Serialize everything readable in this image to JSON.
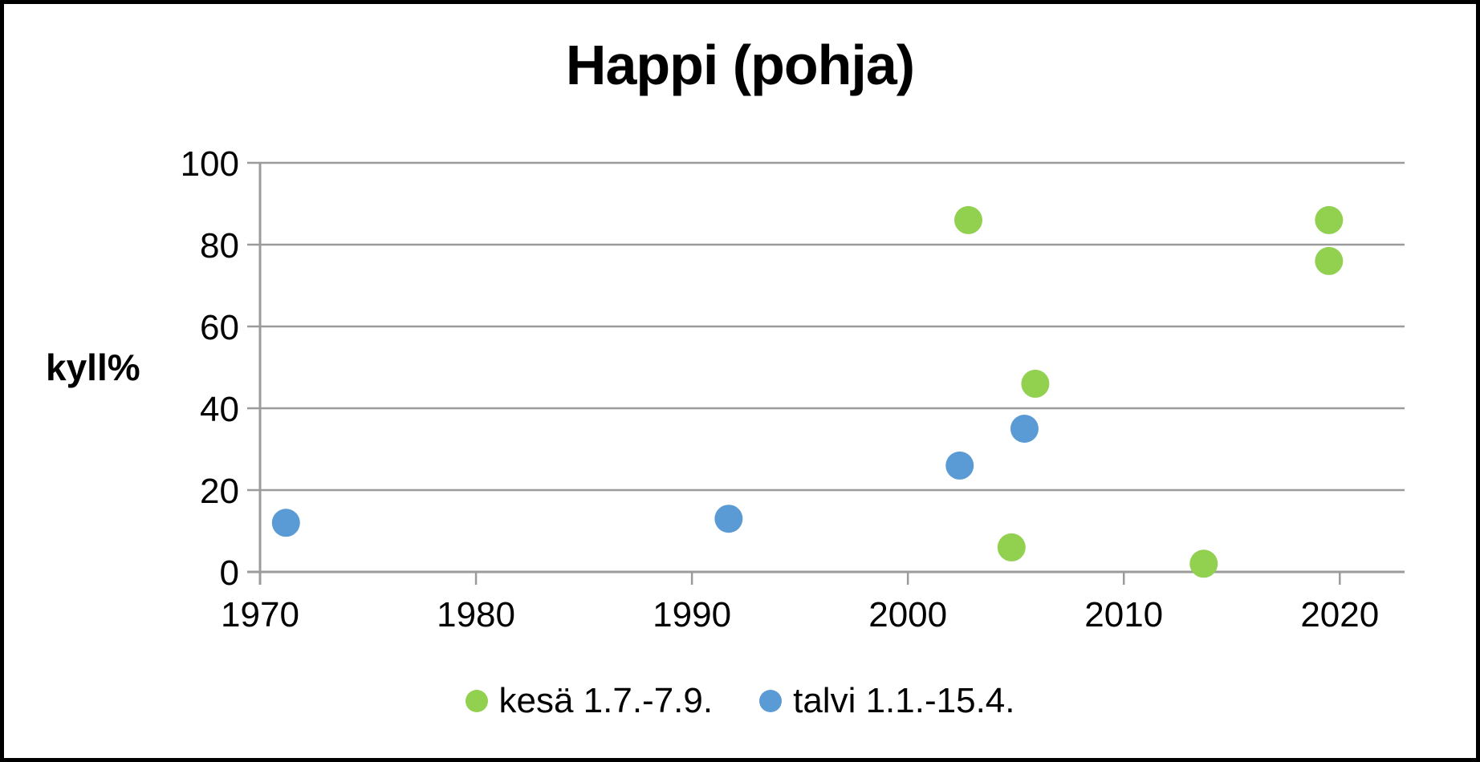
{
  "window": {
    "background": "#ffffff",
    "border_color": "#000000"
  },
  "chart_data": {
    "type": "scatter",
    "title": "Happi (pohja)",
    "xlabel": "",
    "ylabel": "kyll%",
    "xlim": [
      1970,
      2023
    ],
    "ylim": [
      0,
      100
    ],
    "x_ticks": [
      1970,
      1980,
      1990,
      2000,
      2010,
      2020
    ],
    "y_ticks": [
      0,
      20,
      40,
      60,
      80,
      100
    ],
    "grid": "horizontal",
    "legend_position": "bottom",
    "marker": "circle",
    "colors": {
      "grid": "#9b9b9b",
      "axis": "#9b9b9b",
      "text": "#000000"
    },
    "series": [
      {
        "name": "kesä 1.7.-7.9.",
        "color": "#92d050",
        "points": [
          {
            "x": 2002.8,
            "y": 86
          },
          {
            "x": 2004.8,
            "y": 6
          },
          {
            "x": 2005.9,
            "y": 46
          },
          {
            "x": 2013.7,
            "y": 2
          },
          {
            "x": 2019.5,
            "y": 86
          },
          {
            "x": 2019.5,
            "y": 76
          }
        ]
      },
      {
        "name": "talvi 1.1.-15.4.",
        "color": "#5b9bd5",
        "points": [
          {
            "x": 1971.2,
            "y": 12
          },
          {
            "x": 1991.7,
            "y": 13
          },
          {
            "x": 2002.4,
            "y": 26
          },
          {
            "x": 2005.4,
            "y": 35
          }
        ]
      }
    ]
  }
}
